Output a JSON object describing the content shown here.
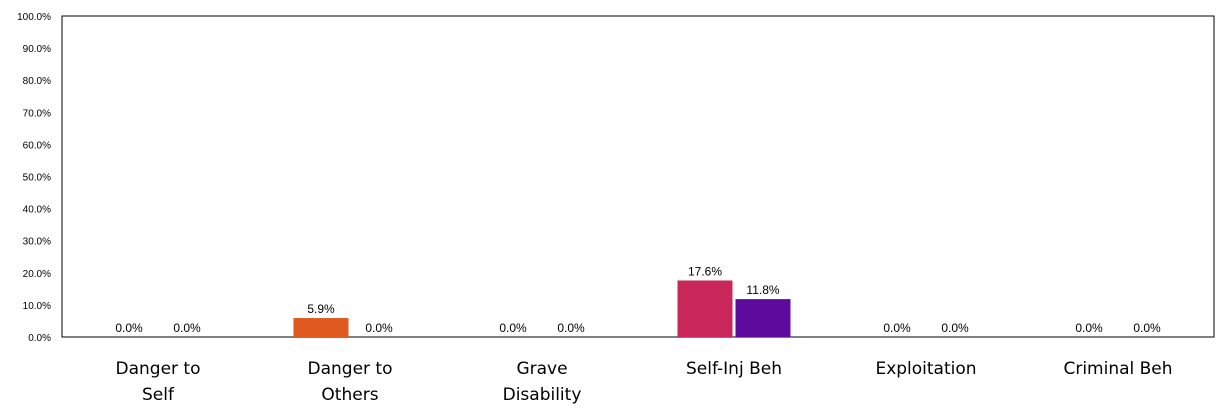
{
  "chart_data": {
    "type": "bar",
    "title": "",
    "xlabel": "",
    "ylabel": "",
    "ylim": [
      0,
      100
    ],
    "yticks": [
      "0.0%",
      "10.0%",
      "20.0%",
      "30.0%",
      "40.0%",
      "50.0%",
      "60.0%",
      "70.0%",
      "80.0%",
      "90.0%",
      "100.0%"
    ],
    "grid": false,
    "legend": "none",
    "categories": [
      [
        "Danger to",
        "Self"
      ],
      [
        "Danger to",
        "Others"
      ],
      [
        "Grave",
        "Disability"
      ],
      [
        "Self-Inj Beh"
      ],
      [
        "Exploitation"
      ],
      [
        "Criminal Beh"
      ]
    ],
    "series": [
      {
        "values": [
          0.0,
          5.9,
          0.0,
          17.6,
          0.0,
          0.0
        ]
      },
      {
        "values": [
          0.0,
          0.0,
          0.0,
          11.8,
          0.0,
          0.0
        ]
      }
    ],
    "data_labels": [
      [
        "0.0%",
        "5.9%",
        "0.0%",
        "17.6%",
        "0.0%",
        "0.0%"
      ],
      [
        "0.0%",
        "0.0%",
        "0.0%",
        "11.8%",
        "0.0%",
        "0.0%"
      ]
    ],
    "bar_colors": [
      [
        "#ffffff",
        "#e0591f",
        "#ffffff",
        "#c9265a",
        "#ffffff",
        "#ffffff"
      ],
      [
        "#ffffff",
        "#ffffff",
        "#ffffff",
        "#5e0a9c",
        "#ffffff",
        "#ffffff"
      ]
    ]
  }
}
